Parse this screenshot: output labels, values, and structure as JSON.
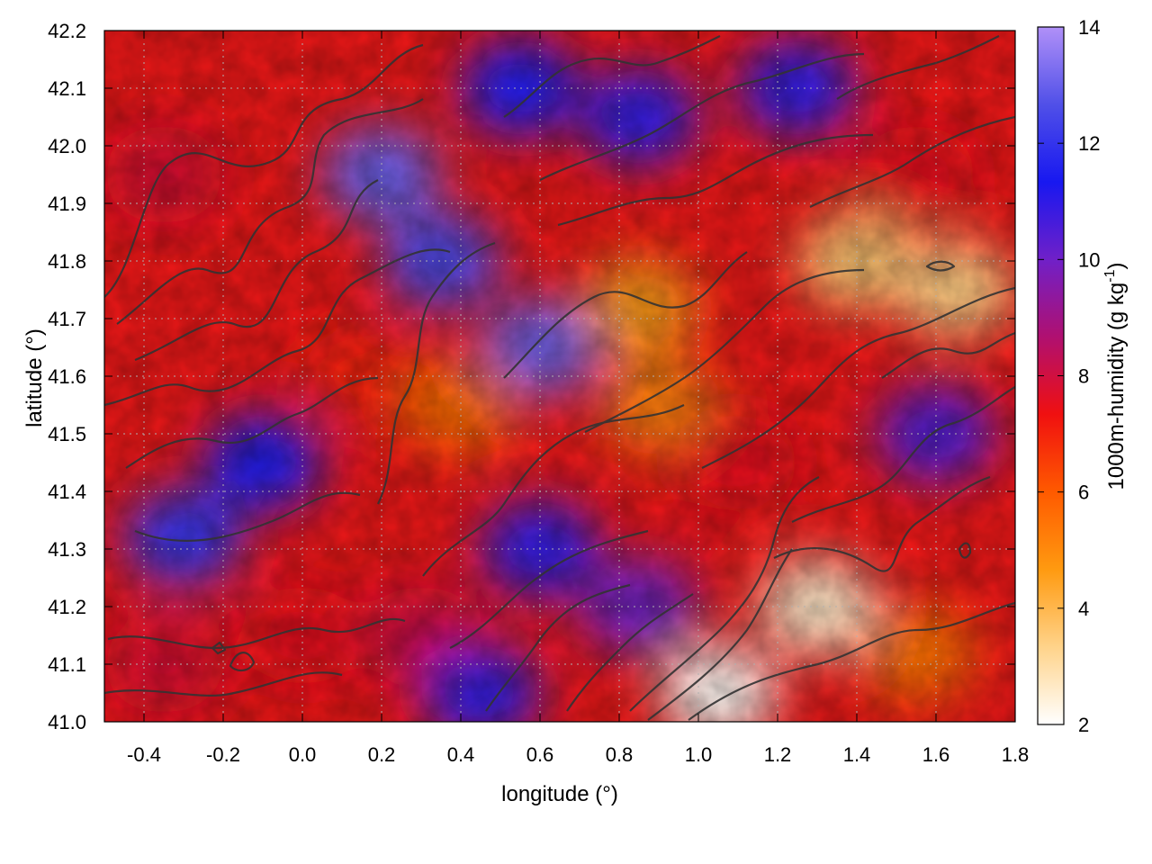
{
  "chart_data": {
    "type": "heatmap",
    "title": "",
    "xlabel": "longitude (°)",
    "ylabel": "latitude (°)",
    "xlim": [
      -0.5,
      1.8
    ],
    "ylim": [
      41.0,
      42.2
    ],
    "x_ticks": [
      "-0.4",
      "-0.2",
      "0.0",
      "0.2",
      "0.4",
      "0.6",
      "0.8",
      "1.0",
      "1.2",
      "1.4",
      "1.6",
      "1.8"
    ],
    "x_tick_values": [
      -0.4,
      -0.2,
      0.0,
      0.2,
      0.4,
      0.6,
      0.8,
      1.0,
      1.2,
      1.4,
      1.6,
      1.8
    ],
    "y_ticks": [
      "41.0",
      "41.1",
      "41.2",
      "41.3",
      "41.4",
      "41.5",
      "41.6",
      "41.7",
      "41.8",
      "41.9",
      "42.0",
      "42.1",
      "42.2"
    ],
    "y_tick_values": [
      41.0,
      41.1,
      41.2,
      41.3,
      41.4,
      41.5,
      41.6,
      41.7,
      41.8,
      41.9,
      42.0,
      42.1,
      42.2
    ],
    "grid": true,
    "colorbar": {
      "label_main": "1000m-humidity (g kg",
      "label_sup": "-1",
      "label_end": ")",
      "range": [
        2,
        14
      ],
      "ticks": [
        "2",
        "4",
        "6",
        "8",
        "10",
        "12",
        "14"
      ],
      "tick_values": [
        2,
        4,
        6,
        8,
        10,
        12,
        14
      ],
      "colors": [
        "#ffffff",
        "#ffd38a",
        "#ff9a10",
        "#ff5a00",
        "#f01010",
        "#b01070",
        "#7020c8",
        "#1818f0",
        "#5050e8",
        "#b090f8"
      ]
    },
    "overlay": "terrain elevation contours (dark gray lines)",
    "regions": [
      {
        "lon": -0.35,
        "lat": 41.95,
        "value": 7.8
      },
      {
        "lon": 0.2,
        "lat": 41.95,
        "value": 13.0
      },
      {
        "lon": 0.55,
        "lat": 42.1,
        "value": 11.5
      },
      {
        "lon": 0.85,
        "lat": 42.05,
        "value": 11.0
      },
      {
        "lon": 1.25,
        "lat": 42.1,
        "value": 11.0
      },
      {
        "lon": 1.55,
        "lat": 41.95,
        "value": 7.5
      },
      {
        "lon": 0.35,
        "lat": 41.8,
        "value": 12.5
      },
      {
        "lon": 0.6,
        "lat": 41.65,
        "value": 13.0
      },
      {
        "lon": 0.85,
        "lat": 41.72,
        "value": 4.6
      },
      {
        "lon": 1.4,
        "lat": 41.8,
        "value": 3.6
      },
      {
        "lon": 1.65,
        "lat": 41.75,
        "value": 3.4
      },
      {
        "lon": -0.1,
        "lat": 41.45,
        "value": 11.5
      },
      {
        "lon": -0.3,
        "lat": 41.32,
        "value": 12.0
      },
      {
        "lon": 0.15,
        "lat": 41.6,
        "value": 7.0
      },
      {
        "lon": 0.4,
        "lat": 41.55,
        "value": 5.6
      },
      {
        "lon": 0.9,
        "lat": 41.55,
        "value": 5.2
      },
      {
        "lon": 1.1,
        "lat": 41.45,
        "value": 7.5
      },
      {
        "lon": 1.6,
        "lat": 41.5,
        "value": 10.5
      },
      {
        "lon": 0.6,
        "lat": 41.3,
        "value": 11.0
      },
      {
        "lon": 0.85,
        "lat": 41.2,
        "value": 10.0
      },
      {
        "lon": 0.3,
        "lat": 41.15,
        "value": 8.0
      },
      {
        "lon": 0.45,
        "lat": 41.05,
        "value": 11.0
      },
      {
        "lon": 1.3,
        "lat": 41.2,
        "value": 2.6
      },
      {
        "lon": 1.05,
        "lat": 41.05,
        "value": 2.1
      },
      {
        "lon": 1.55,
        "lat": 41.12,
        "value": 5.5
      },
      {
        "lon": -0.35,
        "lat": 41.1,
        "value": 7.8
      },
      {
        "lon": 0.0,
        "lat": 41.15,
        "value": 7.5
      }
    ]
  }
}
